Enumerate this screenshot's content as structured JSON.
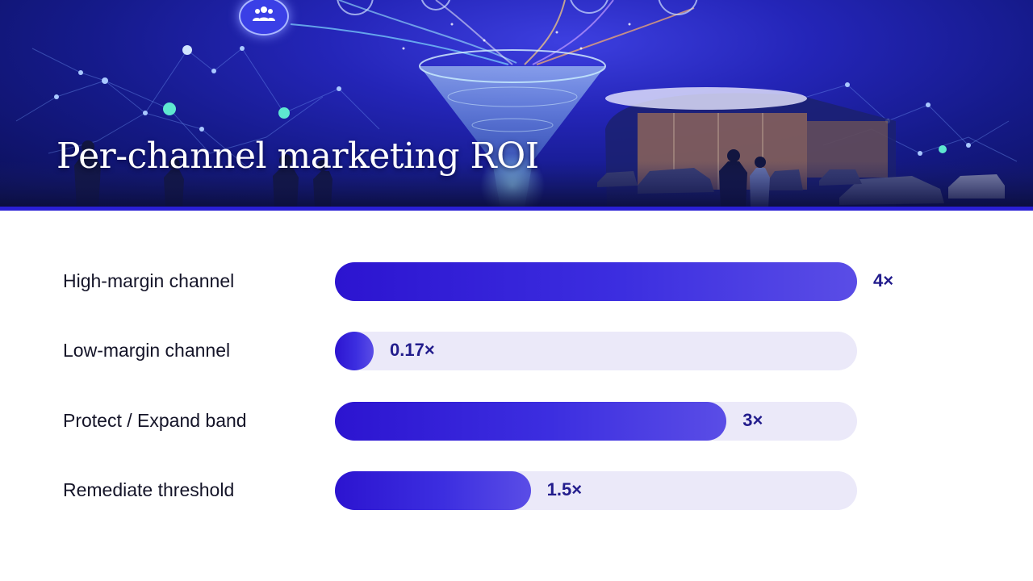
{
  "banner": {
    "title": "Per-channel marketing ROI"
  },
  "icons": {
    "team": "team-people-icon"
  },
  "colors": {
    "bar_start": "#2c14d0",
    "bar_end": "#5a4de6",
    "track": "#ebe9f9",
    "value_text": "#221c8c",
    "banner_accent": "#2a1fd6"
  },
  "chart_data": {
    "type": "bar",
    "orientation": "horizontal",
    "title": "Per-channel marketing ROI",
    "categories": [
      "High-margin channel",
      "Low-margin channel",
      "Protect / Expand band",
      "Remediate threshold"
    ],
    "values": [
      4,
      0.17,
      3,
      1.5
    ],
    "value_labels": [
      "4×",
      "0.17×",
      "3×",
      "1.5×"
    ],
    "xlim": [
      0,
      4
    ],
    "grid": false,
    "legend": "none"
  }
}
